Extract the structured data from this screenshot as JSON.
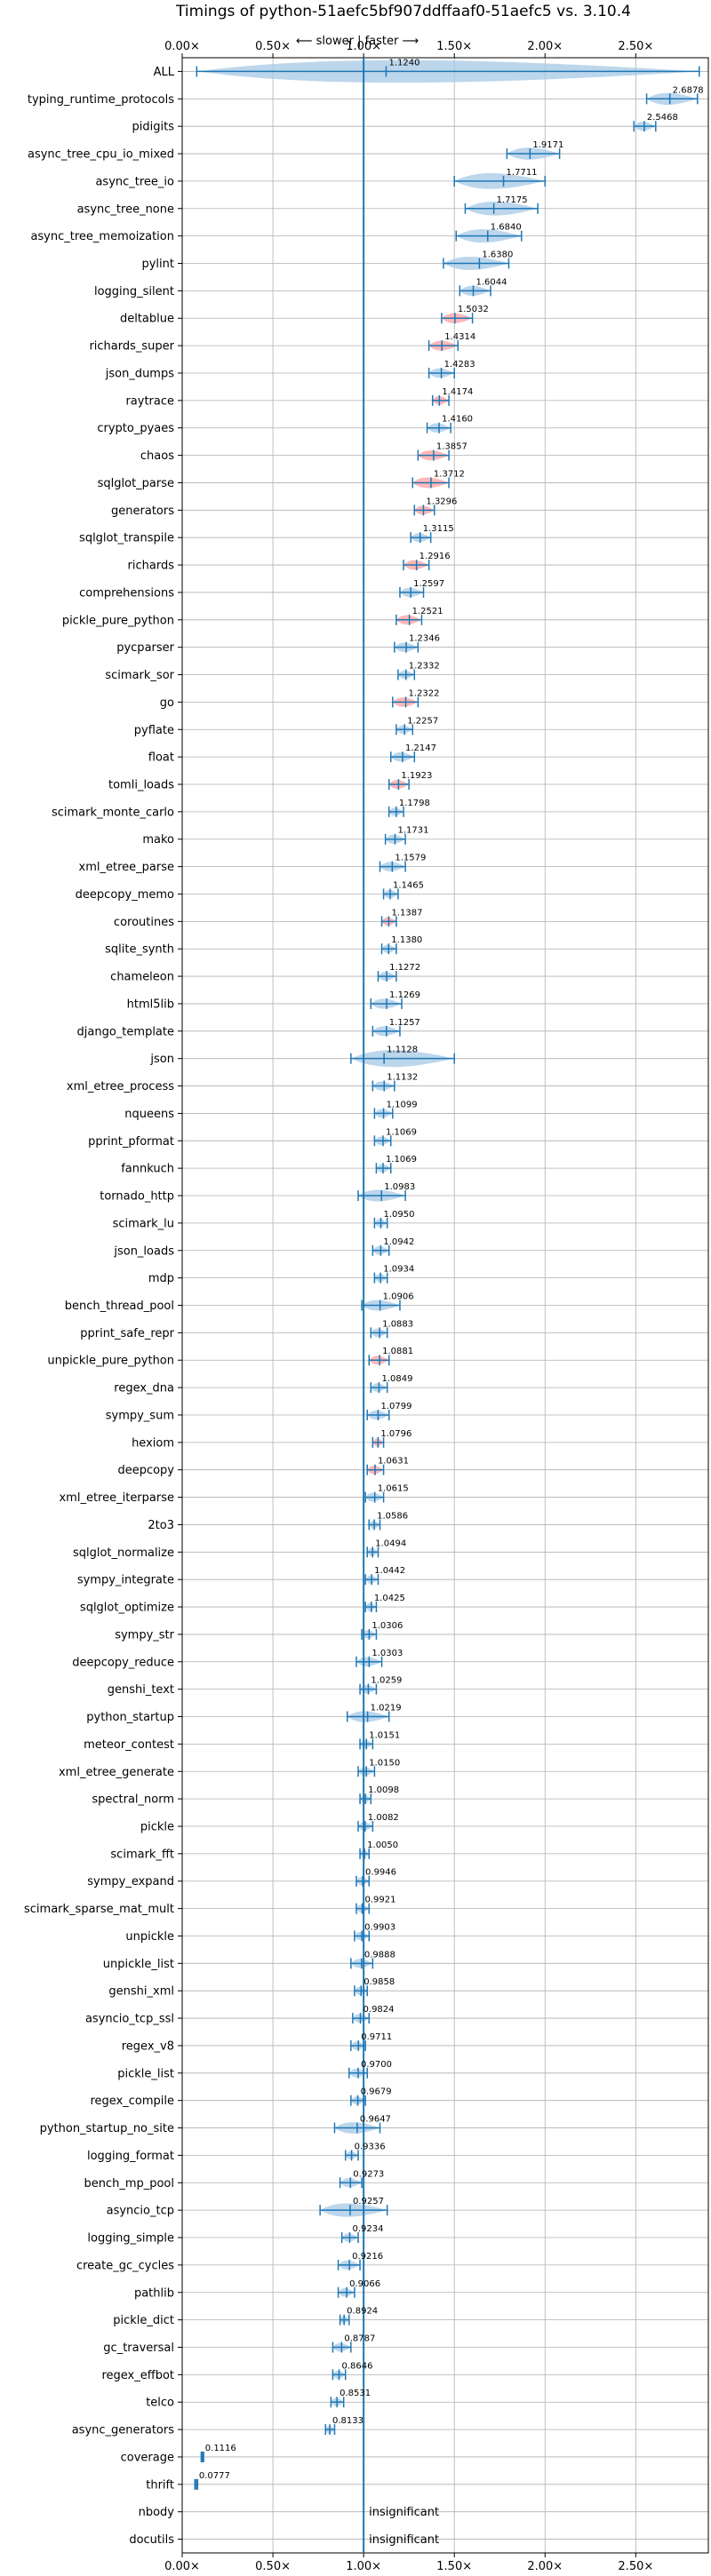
{
  "chart_data": {
    "type": "violin",
    "title": "Timings of python-51aefc5bf907ddffaaf0-51aefc5 vs. 3.10.4",
    "subtitle": "⟵ slower | faster ⟶",
    "xlim": [
      0,
      2.9
    ],
    "xticks": [
      0.0,
      0.5,
      1.0,
      1.5,
      2.0,
      2.5
    ],
    "xtick_labels": [
      "0.00×",
      "0.50×",
      "1.00×",
      "1.50×",
      "2.00×",
      "2.50×"
    ],
    "reference_line": 1.0,
    "grid": true,
    "insignificant_label": "insignificant",
    "colors": {
      "axis": "#1f77b4",
      "violin": "#a6c8e6",
      "significant_worse": "#ff9f9f",
      "grid": "#b0b0b0"
    },
    "benchmarks": [
      {
        "name": "ALL",
        "median": 1.124,
        "min": 0.08,
        "max": 2.85,
        "label": "1.1240",
        "color": "blue"
      },
      {
        "name": "typing_runtime_protocols",
        "median": 2.6878,
        "min": 2.56,
        "max": 2.84,
        "label": "2.6878",
        "color": "blue"
      },
      {
        "name": "pidigits",
        "median": 2.5468,
        "min": 2.49,
        "max": 2.61,
        "label": "2.5468",
        "color": "blue"
      },
      {
        "name": "async_tree_cpu_io_mixed",
        "median": 1.9171,
        "min": 1.79,
        "max": 2.08,
        "label": "1.9171",
        "color": "blue"
      },
      {
        "name": "async_tree_io",
        "median": 1.7711,
        "min": 1.5,
        "max": 2.0,
        "label": "1.7711",
        "color": "blue"
      },
      {
        "name": "async_tree_none",
        "median": 1.7175,
        "min": 1.56,
        "max": 1.96,
        "label": "1.7175",
        "color": "blue"
      },
      {
        "name": "async_tree_memoization",
        "median": 1.684,
        "min": 1.51,
        "max": 1.87,
        "label": "1.6840",
        "color": "blue"
      },
      {
        "name": "pylint",
        "median": 1.638,
        "min": 1.44,
        "max": 1.8,
        "label": "1.6380",
        "color": "blue"
      },
      {
        "name": "logging_silent",
        "median": 1.6044,
        "min": 1.53,
        "max": 1.7,
        "label": "1.6044",
        "color": "blue"
      },
      {
        "name": "deltablue",
        "median": 1.5032,
        "min": 1.43,
        "max": 1.6,
        "label": "1.5032",
        "color": "red"
      },
      {
        "name": "richards_super",
        "median": 1.4314,
        "min": 1.36,
        "max": 1.52,
        "label": "1.4314",
        "color": "red"
      },
      {
        "name": "json_dumps",
        "median": 1.4283,
        "min": 1.36,
        "max": 1.5,
        "label": "1.4283",
        "color": "blue"
      },
      {
        "name": "raytrace",
        "median": 1.4174,
        "min": 1.38,
        "max": 1.47,
        "label": "1.4174",
        "color": "red"
      },
      {
        "name": "crypto_pyaes",
        "median": 1.416,
        "min": 1.35,
        "max": 1.48,
        "label": "1.4160",
        "color": "blue"
      },
      {
        "name": "chaos",
        "median": 1.3857,
        "min": 1.3,
        "max": 1.47,
        "label": "1.3857",
        "color": "red"
      },
      {
        "name": "sqlglot_parse",
        "median": 1.3712,
        "min": 1.27,
        "max": 1.47,
        "label": "1.3712",
        "color": "red"
      },
      {
        "name": "generators",
        "median": 1.3296,
        "min": 1.28,
        "max": 1.39,
        "label": "1.3296",
        "color": "red"
      },
      {
        "name": "sqlglot_transpile",
        "median": 1.3115,
        "min": 1.26,
        "max": 1.37,
        "label": "1.3115",
        "color": "blue"
      },
      {
        "name": "richards",
        "median": 1.2916,
        "min": 1.22,
        "max": 1.36,
        "label": "1.2916",
        "color": "red"
      },
      {
        "name": "comprehensions",
        "median": 1.2597,
        "min": 1.2,
        "max": 1.33,
        "label": "1.2597",
        "color": "blue"
      },
      {
        "name": "pickle_pure_python",
        "median": 1.2521,
        "min": 1.18,
        "max": 1.32,
        "label": "1.2521",
        "color": "red"
      },
      {
        "name": "pycparser",
        "median": 1.2346,
        "min": 1.17,
        "max": 1.3,
        "label": "1.2346",
        "color": "blue"
      },
      {
        "name": "scimark_sor",
        "median": 1.2332,
        "min": 1.19,
        "max": 1.28,
        "label": "1.2332",
        "color": "blue"
      },
      {
        "name": "go",
        "median": 1.2322,
        "min": 1.16,
        "max": 1.3,
        "label": "1.2322",
        "color": "red"
      },
      {
        "name": "pyflate",
        "median": 1.2257,
        "min": 1.18,
        "max": 1.27,
        "label": "1.2257",
        "color": "blue"
      },
      {
        "name": "float",
        "median": 1.2147,
        "min": 1.15,
        "max": 1.28,
        "label": "1.2147",
        "color": "blue"
      },
      {
        "name": "tomli_loads",
        "median": 1.1923,
        "min": 1.14,
        "max": 1.25,
        "label": "1.1923",
        "color": "red"
      },
      {
        "name": "scimark_monte_carlo",
        "median": 1.1798,
        "min": 1.14,
        "max": 1.22,
        "label": "1.1798",
        "color": "blue"
      },
      {
        "name": "mako",
        "median": 1.1731,
        "min": 1.12,
        "max": 1.23,
        "label": "1.1731",
        "color": "blue"
      },
      {
        "name": "xml_etree_parse",
        "median": 1.1579,
        "min": 1.09,
        "max": 1.23,
        "label": "1.1579",
        "color": "blue"
      },
      {
        "name": "deepcopy_memo",
        "median": 1.1465,
        "min": 1.11,
        "max": 1.19,
        "label": "1.1465",
        "color": "blue"
      },
      {
        "name": "coroutines",
        "median": 1.1387,
        "min": 1.1,
        "max": 1.18,
        "label": "1.1387",
        "color": "red"
      },
      {
        "name": "sqlite_synth",
        "median": 1.138,
        "min": 1.1,
        "max": 1.18,
        "label": "1.1380",
        "color": "blue"
      },
      {
        "name": "chameleon",
        "median": 1.1272,
        "min": 1.08,
        "max": 1.18,
        "label": "1.1272",
        "color": "blue"
      },
      {
        "name": "html5lib",
        "median": 1.1269,
        "min": 1.04,
        "max": 1.21,
        "label": "1.1269",
        "color": "blue"
      },
      {
        "name": "django_template",
        "median": 1.1257,
        "min": 1.05,
        "max": 1.2,
        "label": "1.1257",
        "color": "blue"
      },
      {
        "name": "json",
        "median": 1.1128,
        "min": 0.93,
        "max": 1.5,
        "label": "1.1128",
        "color": "blue"
      },
      {
        "name": "xml_etree_process",
        "median": 1.1132,
        "min": 1.05,
        "max": 1.17,
        "label": "1.1132",
        "color": "blue"
      },
      {
        "name": "nqueens",
        "median": 1.1099,
        "min": 1.06,
        "max": 1.16,
        "label": "1.1099",
        "color": "blue"
      },
      {
        "name": "pprint_pformat",
        "median": 1.1069,
        "min": 1.06,
        "max": 1.15,
        "label": "1.1069",
        "color": "blue"
      },
      {
        "name": "fannkuch",
        "median": 1.1069,
        "min": 1.07,
        "max": 1.15,
        "label": "1.1069",
        "color": "blue"
      },
      {
        "name": "tornado_http",
        "median": 1.0983,
        "min": 0.97,
        "max": 1.23,
        "label": "1.0983",
        "color": "blue"
      },
      {
        "name": "scimark_lu",
        "median": 1.095,
        "min": 1.06,
        "max": 1.13,
        "label": "1.0950",
        "color": "blue"
      },
      {
        "name": "json_loads",
        "median": 1.0942,
        "min": 1.05,
        "max": 1.14,
        "label": "1.0942",
        "color": "blue"
      },
      {
        "name": "mdp",
        "median": 1.0934,
        "min": 1.06,
        "max": 1.13,
        "label": "1.0934",
        "color": "blue"
      },
      {
        "name": "bench_thread_pool",
        "median": 1.0906,
        "min": 0.99,
        "max": 1.2,
        "label": "1.0906",
        "color": "blue"
      },
      {
        "name": "pprint_safe_repr",
        "median": 1.0883,
        "min": 1.04,
        "max": 1.13,
        "label": "1.0883",
        "color": "blue"
      },
      {
        "name": "unpickle_pure_python",
        "median": 1.0881,
        "min": 1.03,
        "max": 1.14,
        "label": "1.0881",
        "color": "red"
      },
      {
        "name": "regex_dna",
        "median": 1.0849,
        "min": 1.04,
        "max": 1.13,
        "label": "1.0849",
        "color": "blue"
      },
      {
        "name": "sympy_sum",
        "median": 1.0799,
        "min": 1.02,
        "max": 1.14,
        "label": "1.0799",
        "color": "blue"
      },
      {
        "name": "hexiom",
        "median": 1.0796,
        "min": 1.05,
        "max": 1.11,
        "label": "1.0796",
        "color": "red"
      },
      {
        "name": "deepcopy",
        "median": 1.0631,
        "min": 1.02,
        "max": 1.11,
        "label": "1.0631",
        "color": "red"
      },
      {
        "name": "xml_etree_iterparse",
        "median": 1.0615,
        "min": 1.01,
        "max": 1.11,
        "label": "1.0615",
        "color": "blue"
      },
      {
        "name": "2to3",
        "median": 1.0586,
        "min": 1.03,
        "max": 1.09,
        "label": "1.0586",
        "color": "blue"
      },
      {
        "name": "sqlglot_normalize",
        "median": 1.0494,
        "min": 1.02,
        "max": 1.08,
        "label": "1.0494",
        "color": "blue"
      },
      {
        "name": "sympy_integrate",
        "median": 1.0442,
        "min": 1.01,
        "max": 1.08,
        "label": "1.0442",
        "color": "blue"
      },
      {
        "name": "sqlglot_optimize",
        "median": 1.0425,
        "min": 1.01,
        "max": 1.07,
        "label": "1.0425",
        "color": "blue"
      },
      {
        "name": "sympy_str",
        "median": 1.0306,
        "min": 0.99,
        "max": 1.07,
        "label": "1.0306",
        "color": "blue"
      },
      {
        "name": "deepcopy_reduce",
        "median": 1.0303,
        "min": 0.96,
        "max": 1.1,
        "label": "1.0303",
        "color": "blue"
      },
      {
        "name": "genshi_text",
        "median": 1.0259,
        "min": 0.98,
        "max": 1.07,
        "label": "1.0259",
        "color": "blue"
      },
      {
        "name": "python_startup",
        "median": 1.0219,
        "min": 0.91,
        "max": 1.14,
        "label": "1.0219",
        "color": "blue"
      },
      {
        "name": "meteor_contest",
        "median": 1.0151,
        "min": 0.98,
        "max": 1.05,
        "label": "1.0151",
        "color": "blue"
      },
      {
        "name": "xml_etree_generate",
        "median": 1.015,
        "min": 0.97,
        "max": 1.06,
        "label": "1.0150",
        "color": "blue"
      },
      {
        "name": "spectral_norm",
        "median": 1.0098,
        "min": 0.98,
        "max": 1.04,
        "label": "1.0098",
        "color": "blue"
      },
      {
        "name": "pickle",
        "median": 1.0082,
        "min": 0.97,
        "max": 1.05,
        "label": "1.0082",
        "color": "blue"
      },
      {
        "name": "scimark_fft",
        "median": 1.005,
        "min": 0.98,
        "max": 1.03,
        "label": "1.0050",
        "color": "blue"
      },
      {
        "name": "sympy_expand",
        "median": 0.9946,
        "min": 0.96,
        "max": 1.03,
        "label": "0.9946",
        "color": "blue"
      },
      {
        "name": "scimark_sparse_mat_mult",
        "median": 0.9921,
        "min": 0.96,
        "max": 1.03,
        "label": "0.9921",
        "color": "blue"
      },
      {
        "name": "unpickle",
        "median": 0.9903,
        "min": 0.95,
        "max": 1.03,
        "label": "0.9903",
        "color": "blue"
      },
      {
        "name": "unpickle_list",
        "median": 0.9888,
        "min": 0.93,
        "max": 1.05,
        "label": "0.9888",
        "color": "blue"
      },
      {
        "name": "genshi_xml",
        "median": 0.9858,
        "min": 0.95,
        "max": 1.02,
        "label": "0.9858",
        "color": "blue"
      },
      {
        "name": "asyncio_tcp_ssl",
        "median": 0.9824,
        "min": 0.94,
        "max": 1.03,
        "label": "0.9824",
        "color": "blue"
      },
      {
        "name": "regex_v8",
        "median": 0.9711,
        "min": 0.93,
        "max": 1.01,
        "label": "0.9711",
        "color": "blue"
      },
      {
        "name": "pickle_list",
        "median": 0.97,
        "min": 0.92,
        "max": 1.02,
        "label": "0.9700",
        "color": "blue"
      },
      {
        "name": "regex_compile",
        "median": 0.9679,
        "min": 0.93,
        "max": 1.01,
        "label": "0.9679",
        "color": "blue"
      },
      {
        "name": "python_startup_no_site",
        "median": 0.9647,
        "min": 0.84,
        "max": 1.09,
        "label": "0.9647",
        "color": "blue"
      },
      {
        "name": "logging_format",
        "median": 0.9336,
        "min": 0.9,
        "max": 0.97,
        "label": "0.9336",
        "color": "blue"
      },
      {
        "name": "bench_mp_pool",
        "median": 0.9273,
        "min": 0.87,
        "max": 0.99,
        "label": "0.9273",
        "color": "blue"
      },
      {
        "name": "asyncio_tcp",
        "median": 0.9257,
        "min": 0.76,
        "max": 1.13,
        "label": "0.9257",
        "color": "blue"
      },
      {
        "name": "logging_simple",
        "median": 0.9234,
        "min": 0.88,
        "max": 0.97,
        "label": "0.9234",
        "color": "blue"
      },
      {
        "name": "create_gc_cycles",
        "median": 0.9216,
        "min": 0.86,
        "max": 0.98,
        "label": "0.9216",
        "color": "blue"
      },
      {
        "name": "pathlib",
        "median": 0.9066,
        "min": 0.86,
        "max": 0.95,
        "label": "0.9066",
        "color": "blue"
      },
      {
        "name": "pickle_dict",
        "median": 0.8924,
        "min": 0.87,
        "max": 0.92,
        "label": "0.8924",
        "color": "blue"
      },
      {
        "name": "gc_traversal",
        "median": 0.8787,
        "min": 0.83,
        "max": 0.93,
        "label": "0.8787",
        "color": "blue"
      },
      {
        "name": "regex_effbot",
        "median": 0.8646,
        "min": 0.83,
        "max": 0.9,
        "label": "0.8646",
        "color": "blue"
      },
      {
        "name": "telco",
        "median": 0.8531,
        "min": 0.82,
        "max": 0.89,
        "label": "0.8531",
        "color": "blue"
      },
      {
        "name": "async_generators",
        "median": 0.8133,
        "min": 0.79,
        "max": 0.84,
        "label": "0.8133",
        "color": "blue"
      },
      {
        "name": "coverage",
        "median": 0.1116,
        "min": 0.105,
        "max": 0.118,
        "label": "0.1116",
        "color": "blue"
      },
      {
        "name": "thrift",
        "median": 0.0777,
        "min": 0.07,
        "max": 0.085,
        "label": "0.0777",
        "color": "blue"
      },
      {
        "name": "nbody",
        "median": null,
        "insignificant": true
      },
      {
        "name": "docutils",
        "median": null,
        "insignificant": true
      }
    ]
  }
}
